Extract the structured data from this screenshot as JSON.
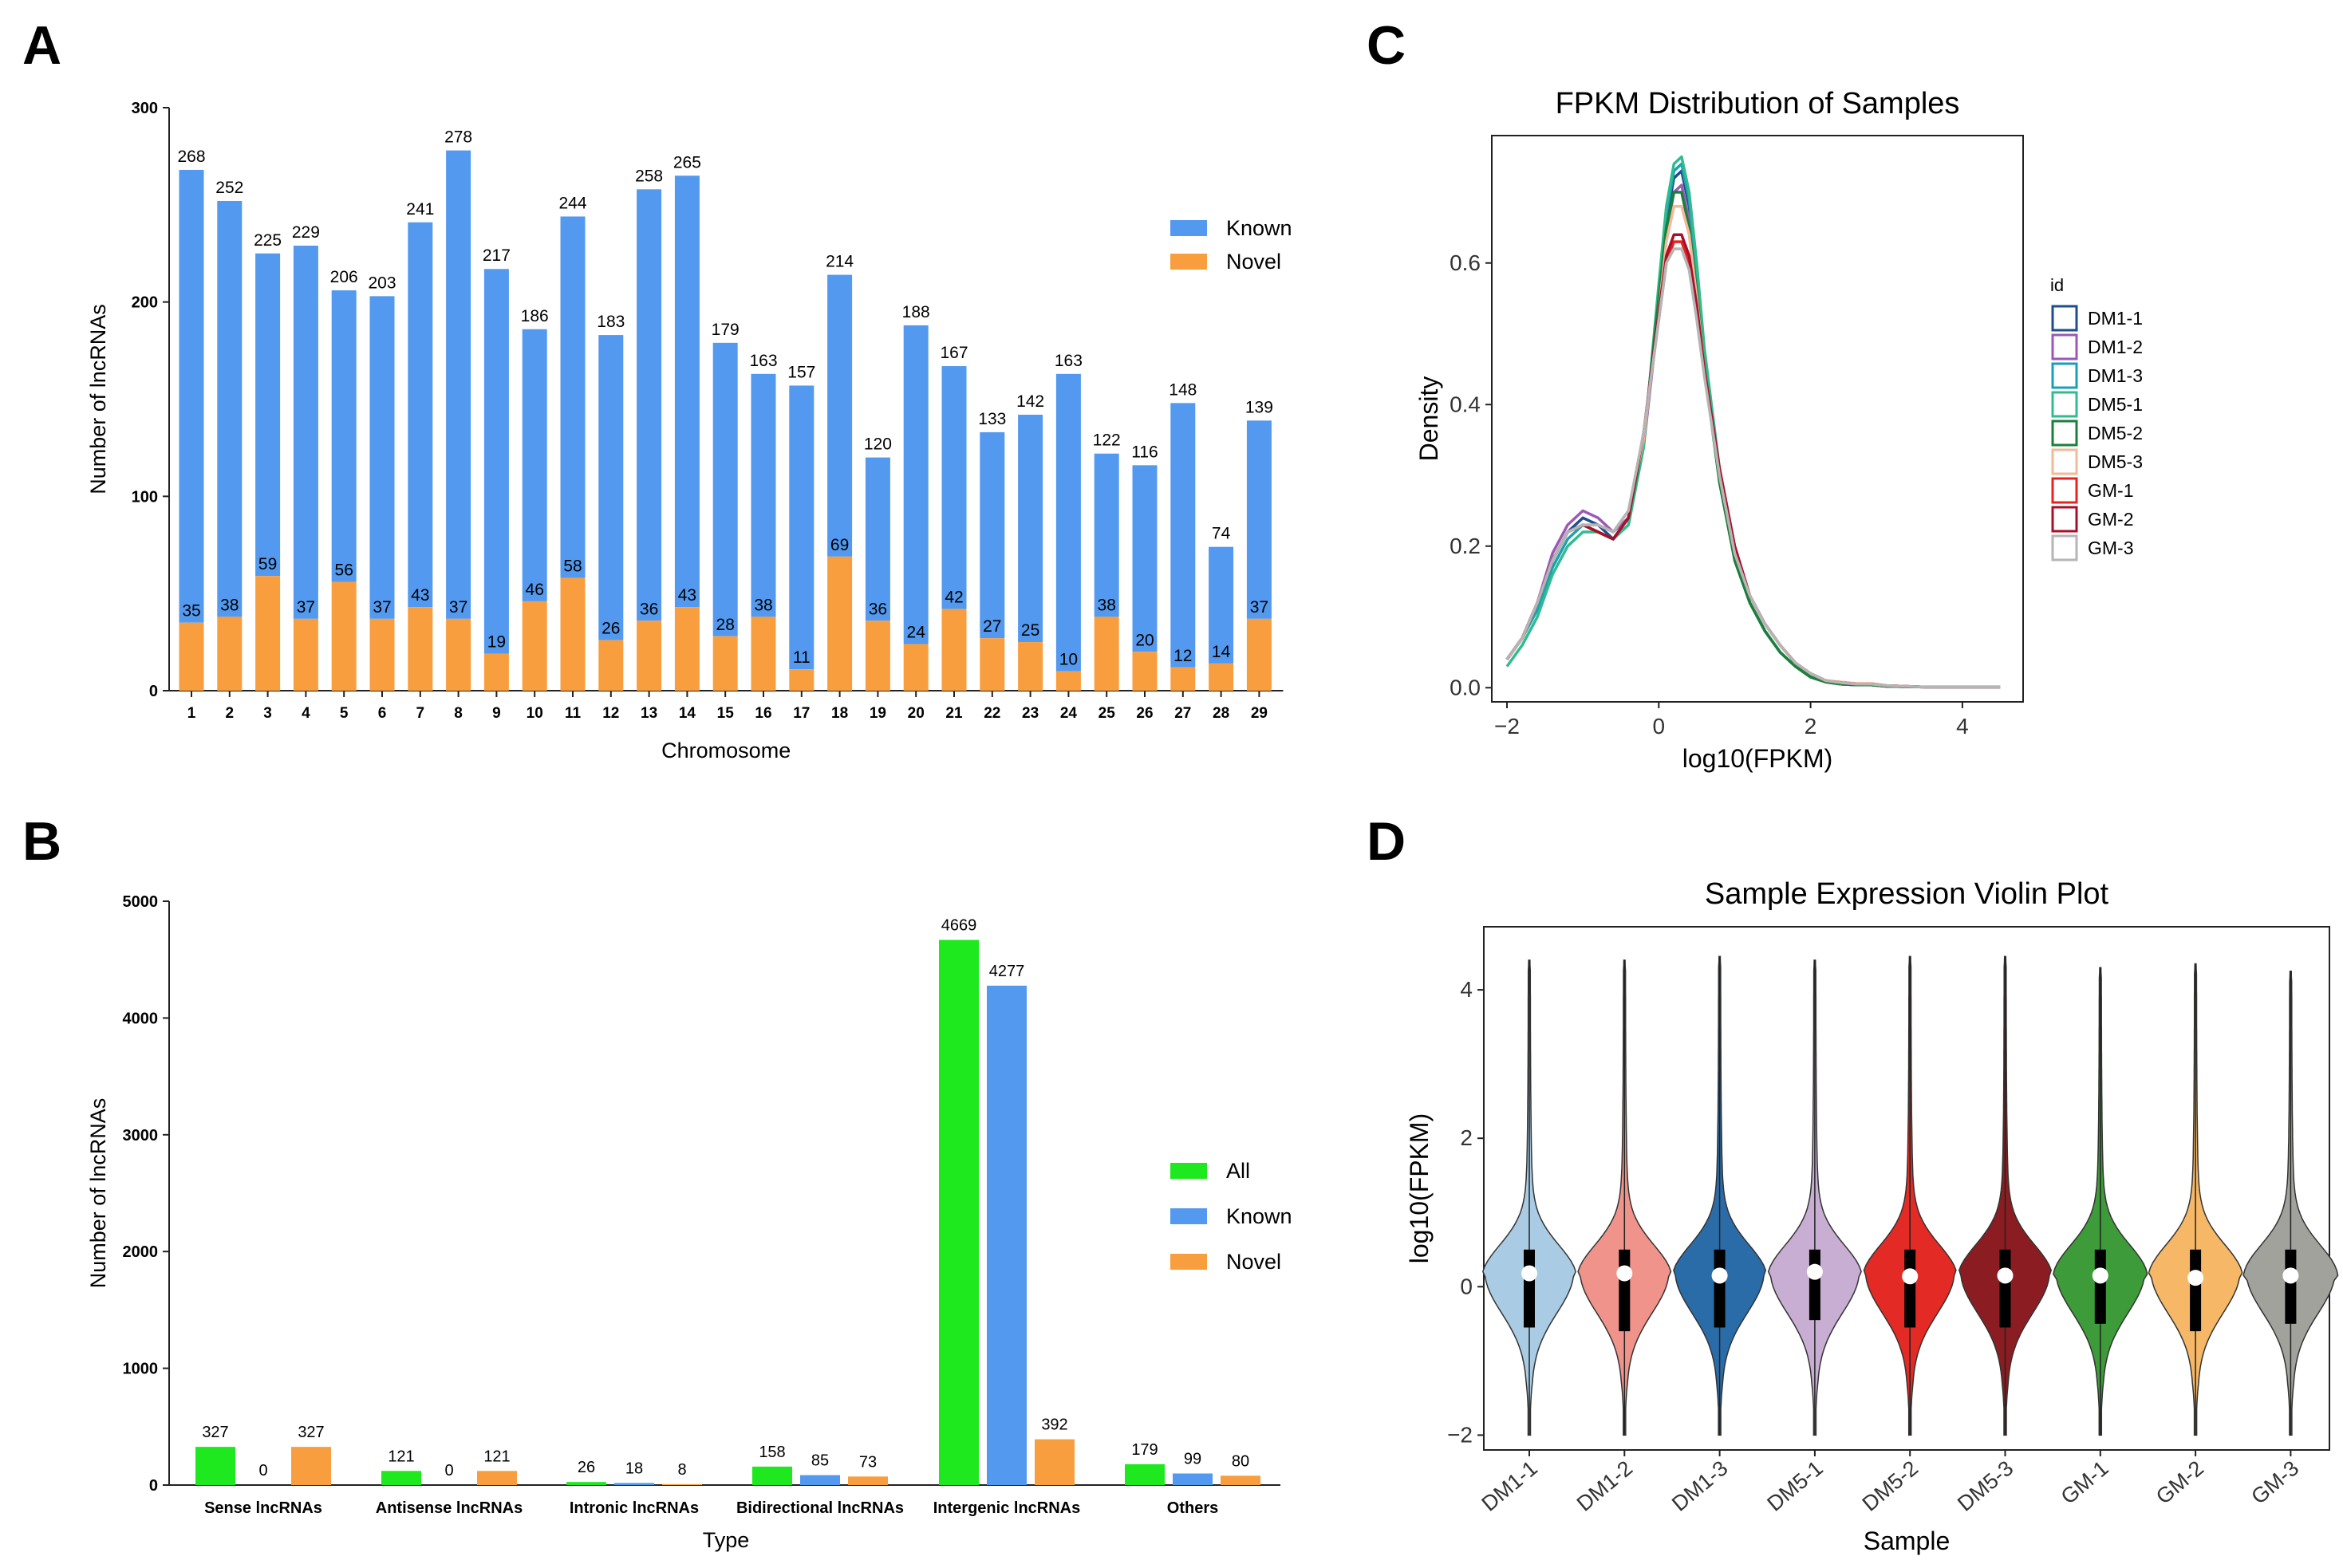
{
  "panels": {
    "a": "A",
    "b": "B",
    "c": "C",
    "d": "D"
  },
  "chart_data": [
    {
      "id": "A",
      "type": "bar",
      "stacked": true,
      "xlabel": "Chromosome",
      "ylabel": "Number of lncRNAs",
      "ylim": [
        0,
        300
      ],
      "yticks": [
        0,
        100,
        200,
        300
      ],
      "categories": [
        "1",
        "2",
        "3",
        "4",
        "5",
        "6",
        "7",
        "8",
        "9",
        "10",
        "11",
        "12",
        "13",
        "14",
        "15",
        "16",
        "17",
        "18",
        "19",
        "20",
        "21",
        "22",
        "23",
        "24",
        "25",
        "26",
        "27",
        "28",
        "29"
      ],
      "series": [
        {
          "name": "Known",
          "color": "#5299ef",
          "total_labels": [
            268,
            252,
            225,
            229,
            206,
            203,
            241,
            278,
            217,
            186,
            244,
            183,
            258,
            265,
            179,
            163,
            157,
            214,
            120,
            188,
            167,
            133,
            142,
            163,
            122,
            116,
            148,
            74,
            139
          ]
        },
        {
          "name": "Novel",
          "color": "#f99e3f",
          "values": [
            35,
            38,
            59,
            37,
            56,
            37,
            43,
            37,
            19,
            46,
            58,
            26,
            36,
            43,
            28,
            38,
            11,
            69,
            36,
            24,
            42,
            27,
            25,
            10,
            38,
            20,
            12,
            14,
            37
          ]
        }
      ],
      "legend": [
        "Known",
        "Novel"
      ],
      "legend_position": "right"
    },
    {
      "id": "B",
      "type": "bar",
      "grouped": true,
      "xlabel": "Type",
      "ylabel": "Number of lncRNAs",
      "ylim": [
        0,
        5000
      ],
      "yticks": [
        0,
        1000,
        2000,
        3000,
        4000,
        5000
      ],
      "categories": [
        "Sense lncRNAs",
        "Antisense lncRNAs",
        "Intronic lncRNAs",
        "Bidirectional lncRNAs",
        "Intergenic lncRNAs",
        "Others"
      ],
      "series": [
        {
          "name": "All",
          "color": "#1ee81e",
          "values": [
            327,
            121,
            26,
            158,
            4669,
            179
          ]
        },
        {
          "name": "Known",
          "color": "#5299ef",
          "values": [
            0,
            0,
            18,
            85,
            4277,
            99
          ]
        },
        {
          "name": "Novel",
          "color": "#f99e3f",
          "values": [
            327,
            121,
            8,
            73,
            392,
            80
          ]
        }
      ],
      "legend": [
        "All",
        "Known",
        "Novel"
      ],
      "legend_position": "right"
    },
    {
      "id": "C",
      "type": "line",
      "title": "FPKM Distribution of Samples",
      "xlabel": "log10(FPKM)",
      "ylabel": "Density",
      "xlim": [
        -2.2,
        4.8
      ],
      "ylim": [
        -0.02,
        0.78
      ],
      "xticks": [
        -2,
        0,
        2,
        4
      ],
      "xtick_labels": [
        "−2",
        "0",
        "2",
        "4"
      ],
      "yticks": [
        0.0,
        0.2,
        0.4,
        0.6
      ],
      "ytick_labels": [
        "0.0",
        "0.2",
        "0.4",
        "0.6"
      ],
      "x": [
        -2.0,
        -1.8,
        -1.6,
        -1.4,
        -1.2,
        -1.0,
        -0.8,
        -0.6,
        -0.4,
        -0.2,
        0.0,
        0.1,
        0.2,
        0.3,
        0.4,
        0.5,
        0.6,
        0.8,
        1.0,
        1.2,
        1.4,
        1.6,
        1.8,
        2.0,
        2.2,
        2.4,
        2.6,
        2.8,
        3.0,
        3.5,
        4.0,
        4.5
      ],
      "legend_title": "id",
      "legend_position": "right",
      "series": [
        {
          "name": "DM1-1",
          "color": "#1f4e8c",
          "values": [
            0.04,
            0.07,
            0.12,
            0.18,
            0.22,
            0.24,
            0.23,
            0.21,
            0.24,
            0.35,
            0.55,
            0.66,
            0.72,
            0.73,
            0.68,
            0.58,
            0.47,
            0.3,
            0.18,
            0.12,
            0.08,
            0.05,
            0.03,
            0.015,
            0.008,
            0.005,
            0.004,
            0.004,
            0.002,
            0.001,
            0.001,
            0.001
          ]
        },
        {
          "name": "DM1-2",
          "color": "#9b59b6",
          "values": [
            0.04,
            0.07,
            0.12,
            0.19,
            0.23,
            0.25,
            0.24,
            0.22,
            0.24,
            0.34,
            0.53,
            0.64,
            0.7,
            0.71,
            0.66,
            0.57,
            0.46,
            0.3,
            0.18,
            0.12,
            0.08,
            0.05,
            0.03,
            0.015,
            0.008,
            0.005,
            0.004,
            0.004,
            0.002,
            0.001,
            0.001,
            0.001
          ]
        },
        {
          "name": "DM1-3",
          "color": "#1aa0b4",
          "values": [
            0.04,
            0.07,
            0.11,
            0.17,
            0.21,
            0.23,
            0.22,
            0.21,
            0.23,
            0.34,
            0.56,
            0.67,
            0.73,
            0.74,
            0.69,
            0.59,
            0.47,
            0.3,
            0.18,
            0.12,
            0.08,
            0.05,
            0.03,
            0.015,
            0.008,
            0.005,
            0.004,
            0.004,
            0.002,
            0.001,
            0.001,
            0.001
          ]
        },
        {
          "name": "DM5-1",
          "color": "#2fbc8e",
          "values": [
            0.03,
            0.06,
            0.1,
            0.16,
            0.2,
            0.22,
            0.22,
            0.21,
            0.23,
            0.34,
            0.57,
            0.68,
            0.74,
            0.75,
            0.7,
            0.6,
            0.48,
            0.31,
            0.19,
            0.12,
            0.08,
            0.05,
            0.03,
            0.015,
            0.008,
            0.005,
            0.004,
            0.004,
            0.002,
            0.001,
            0.001,
            0.001
          ]
        },
        {
          "name": "DM5-2",
          "color": "#1b7f3b",
          "values": [
            0.04,
            0.07,
            0.12,
            0.18,
            0.22,
            0.23,
            0.22,
            0.21,
            0.24,
            0.35,
            0.55,
            0.65,
            0.7,
            0.7,
            0.65,
            0.56,
            0.45,
            0.29,
            0.18,
            0.12,
            0.08,
            0.05,
            0.03,
            0.015,
            0.008,
            0.005,
            0.004,
            0.004,
            0.002,
            0.001,
            0.001,
            0.001
          ]
        },
        {
          "name": "DM5-3",
          "color": "#f2b99a",
          "values": [
            0.04,
            0.07,
            0.12,
            0.18,
            0.22,
            0.23,
            0.23,
            0.22,
            0.25,
            0.35,
            0.53,
            0.63,
            0.68,
            0.68,
            0.64,
            0.55,
            0.45,
            0.3,
            0.19,
            0.13,
            0.09,
            0.06,
            0.035,
            0.02,
            0.01,
            0.008,
            0.006,
            0.006,
            0.003,
            0.001,
            0.001,
            0.001
          ]
        },
        {
          "name": "GM-1",
          "color": "#e8231f",
          "values": [
            0.04,
            0.07,
            0.12,
            0.18,
            0.22,
            0.23,
            0.22,
            0.21,
            0.24,
            0.36,
            0.52,
            0.6,
            0.63,
            0.63,
            0.6,
            0.53,
            0.45,
            0.31,
            0.2,
            0.13,
            0.09,
            0.06,
            0.035,
            0.02,
            0.01,
            0.007,
            0.005,
            0.005,
            0.003,
            0.001,
            0.001,
            0.001
          ]
        },
        {
          "name": "GM-2",
          "color": "#a8102a",
          "values": [
            0.04,
            0.07,
            0.12,
            0.18,
            0.22,
            0.23,
            0.22,
            0.21,
            0.24,
            0.36,
            0.53,
            0.61,
            0.64,
            0.64,
            0.61,
            0.54,
            0.45,
            0.31,
            0.2,
            0.13,
            0.09,
            0.06,
            0.035,
            0.02,
            0.01,
            0.007,
            0.005,
            0.005,
            0.003,
            0.001,
            0.001,
            0.001
          ]
        },
        {
          "name": "GM-3",
          "color": "#b5b5b5",
          "values": [
            0.04,
            0.07,
            0.12,
            0.18,
            0.22,
            0.23,
            0.23,
            0.22,
            0.25,
            0.36,
            0.52,
            0.6,
            0.62,
            0.62,
            0.59,
            0.52,
            0.44,
            0.3,
            0.19,
            0.13,
            0.09,
            0.06,
            0.035,
            0.02,
            0.01,
            0.007,
            0.005,
            0.005,
            0.003,
            0.001,
            0.001,
            0.001
          ]
        }
      ]
    },
    {
      "id": "D",
      "type": "violin",
      "title": "Sample Expression Violin Plot",
      "xlabel": "Sample",
      "ylabel": "log10(FPKM)",
      "ylim": [
        -2.2,
        4.85
      ],
      "yticks": [
        -2,
        0,
        2,
        4
      ],
      "ytick_labels": [
        "−2",
        "0",
        "2",
        "4"
      ],
      "categories": [
        "DM1-1",
        "DM1-2",
        "DM1-3",
        "DM5-1",
        "DM5-2",
        "DM5-3",
        "GM-1",
        "GM-2",
        "GM-3"
      ],
      "colors": [
        "#a9cce4",
        "#f0938a",
        "#2a6ca8",
        "#c8aed3",
        "#e42a25",
        "#8b1d22",
        "#3d9b3a",
        "#f6b866",
        "#a1a29c"
      ],
      "medians": [
        0.18,
        0.18,
        0.15,
        0.2,
        0.14,
        0.15,
        0.15,
        0.12,
        0.15
      ],
      "q1": [
        -0.55,
        -0.6,
        -0.55,
        -0.45,
        -0.55,
        -0.55,
        -0.5,
        -0.6,
        -0.5
      ],
      "q3": [
        0.5,
        0.5,
        0.5,
        0.5,
        0.5,
        0.5,
        0.5,
        0.5,
        0.5
      ],
      "max": [
        4.4,
        4.4,
        4.45,
        4.4,
        4.45,
        4.45,
        4.3,
        4.35,
        4.25
      ],
      "min": [
        -2.0,
        -2.0,
        -2.0,
        -2.0,
        -2.0,
        -2.0,
        -2.0,
        -2.0,
        -2.0
      ]
    }
  ]
}
